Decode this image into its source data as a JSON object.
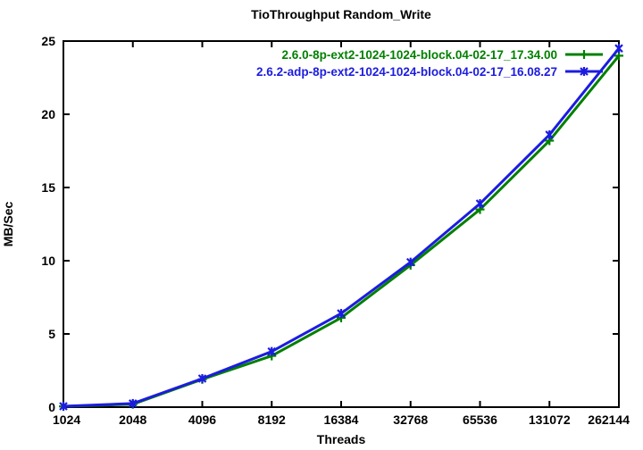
{
  "chart_data": {
    "type": "line",
    "title": "TioThroughput Random_Write",
    "xlabel": "Threads",
    "ylabel": "MB/Sec",
    "categories": [
      "1024",
      "2048",
      "4096",
      "8192",
      "16384",
      "32768",
      "65536",
      "131072",
      "262144"
    ],
    "series": [
      {
        "name": "2.6.0-8p-ext2-1024-1024-block.04-02-17_17.34.00",
        "color": "#008000",
        "marker": "plus",
        "values": [
          0.05,
          0.2,
          1.9,
          3.5,
          6.1,
          9.7,
          13.5,
          18.2,
          24.0
        ]
      },
      {
        "name": "2.6.2-adp-8p-ext2-1024-1024-block.04-02-17_16.08.27",
        "color": "#1c1ce0",
        "marker": "asterisk",
        "values": [
          0.06,
          0.25,
          1.95,
          3.8,
          6.4,
          9.9,
          13.9,
          18.6,
          24.5
        ]
      }
    ],
    "yticks": [
      0,
      5,
      10,
      15,
      20,
      25
    ],
    "ylim": [
      0,
      25
    ],
    "x_scale": "log2-even-spacing",
    "grid": false,
    "legend_position": "top-right-inside",
    "axis_color": "#000000"
  }
}
